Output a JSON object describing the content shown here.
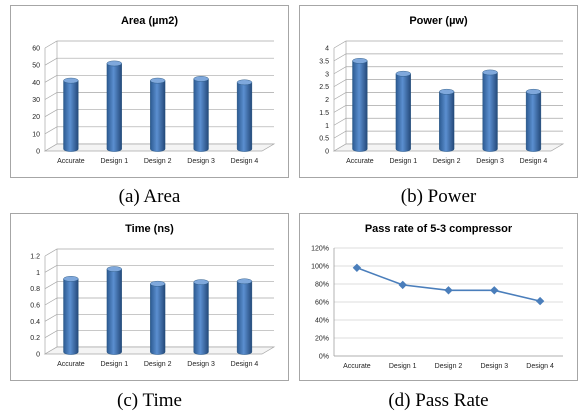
{
  "captions": {
    "a": "(a)  Area",
    "b": "(b)  Power",
    "c": "(c)  Time",
    "d": "(d)  Pass Rate"
  },
  "colors": {
    "bar": "#4f81bd",
    "bar_dark": "#1f4e79",
    "line": "#4a7ebb",
    "grid": "#a6a6a6"
  },
  "chart_data": [
    {
      "type": "bar",
      "title": "Area (µm2)",
      "categories": [
        "Accurate",
        "Design 1",
        "Design 2",
        "Design 3",
        "Design 4"
      ],
      "values": [
        41,
        51,
        41,
        42,
        40
      ],
      "ylim": [
        0,
        60
      ],
      "yticks": [
        "0",
        "10",
        "20",
        "30",
        "40",
        "50",
        "60"
      ],
      "grid": true
    },
    {
      "type": "bar",
      "title": "Power (µw)",
      "categories": [
        "Accurate",
        "Design 1",
        "Design 2",
        "Design 3",
        "Design 4"
      ],
      "values": [
        3.5,
        3.0,
        2.3,
        3.05,
        2.3
      ],
      "ylim": [
        0,
        4
      ],
      "yticks": [
        "0",
        "0.5",
        "1",
        "1.5",
        "2",
        "2.5",
        "3",
        "3.5",
        "4"
      ],
      "grid": true
    },
    {
      "type": "bar",
      "title": "Time (ns)",
      "categories": [
        "Accurate",
        "Design 1",
        "Design 2",
        "Design 3",
        "Design 4"
      ],
      "values": [
        0.92,
        1.04,
        0.86,
        0.88,
        0.89
      ],
      "ylim": [
        0,
        1.2
      ],
      "yticks": [
        "0",
        "0.2",
        "0.4",
        "0.6",
        "0.8",
        "1",
        "1.2"
      ],
      "grid": true
    },
    {
      "type": "line",
      "title": "Pass rate of 5-3 compressor",
      "categories": [
        "Accurate",
        "Design 1",
        "Design 2",
        "Design 3",
        "Design 4"
      ],
      "values": [
        98,
        79,
        73,
        73,
        61
      ],
      "ylim": [
        0,
        120
      ],
      "yticks": [
        "0%",
        "20%",
        "40%",
        "60%",
        "80%",
        "100%",
        "120%"
      ],
      "grid": true
    }
  ]
}
